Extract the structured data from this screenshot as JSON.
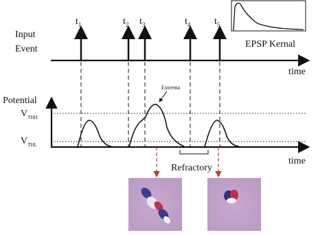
{
  "input": {
    "label_line1": "Input",
    "label_line2": "Event",
    "time_label": "time",
    "events": [
      {
        "base": "t",
        "sub": "1"
      },
      {
        "base": "t",
        "sub": "2"
      },
      {
        "base": "t",
        "sub": "3"
      },
      {
        "base": "t",
        "sub": "4"
      },
      {
        "base": "t",
        "sub": "5"
      }
    ]
  },
  "kernel": {
    "label": "EPSP Kernal"
  },
  "potential": {
    "label": "Potential",
    "time_label": "time",
    "thresholds": [
      {
        "base": "V",
        "sub": "THH"
      },
      {
        "base": "V",
        "sub": "THL"
      }
    ],
    "extrema": "Extrema",
    "refractory": "Refractory"
  }
}
